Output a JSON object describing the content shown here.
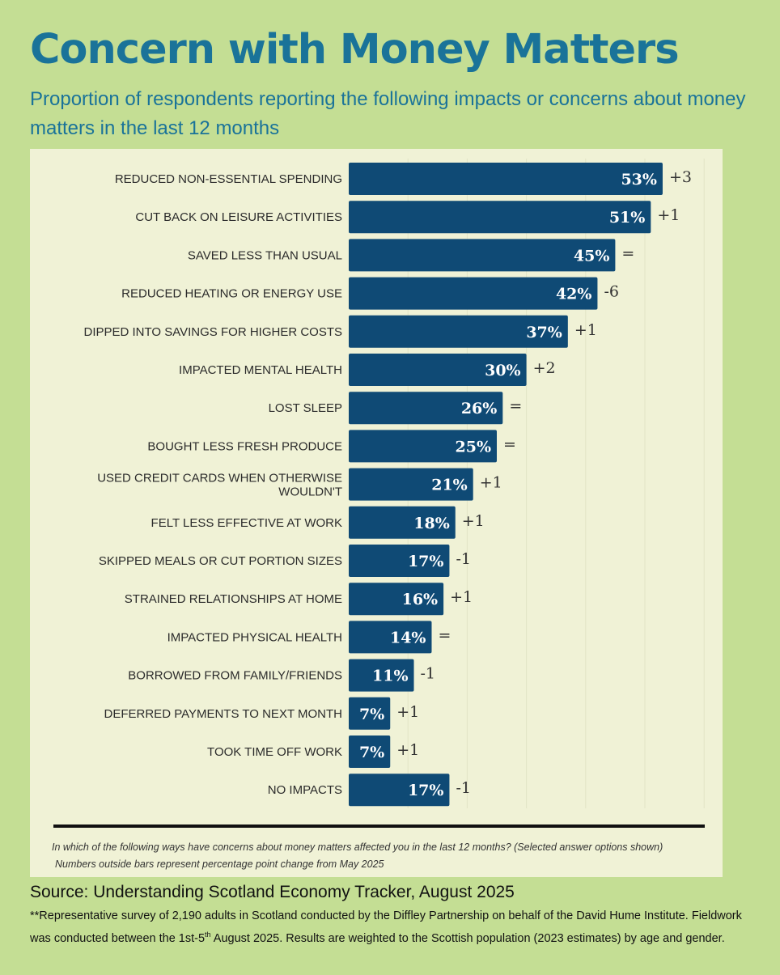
{
  "title": "Concern with Money Matters",
  "subtitle": "Proportion of respondents reporting the following impacts or concerns about money matters in the last 12 months",
  "colors": {
    "background": "#c4de94",
    "panel": "#f0f2d6",
    "bar": "#0f4a75",
    "heading": "#1a7399"
  },
  "chart_data": {
    "type": "bar",
    "orientation": "horizontal",
    "unit": "%",
    "xlim": [
      0,
      60
    ],
    "categories": [
      "REDUCED NON-ESSENTIAL SPENDING",
      "CUT BACK ON LEISURE ACTIVITIES",
      "SAVED LESS THAN USUAL",
      "REDUCED HEATING OR ENERGY USE",
      "DIPPED INTO SAVINGS FOR HIGHER COSTS",
      "IMPACTED MENTAL HEALTH",
      "LOST SLEEP",
      "BOUGHT LESS FRESH PRODUCE",
      "USED CREDIT CARDS WHEN OTHERWISE WOULDN'T",
      "FELT LESS EFFECTIVE AT WORK",
      "SKIPPED MEALS OR CUT PORTION SIZES",
      "STRAINED RELATIONSHIPS AT HOME",
      "IMPACTED PHYSICAL HEALTH",
      "BORROWED FROM FAMILY/FRIENDS",
      "DEFERRED PAYMENTS TO NEXT MONTH",
      "TOOK TIME OFF WORK",
      "NO IMPACTS"
    ],
    "values": [
      53,
      51,
      45,
      42,
      37,
      30,
      26,
      25,
      21,
      18,
      17,
      16,
      14,
      11,
      7,
      7,
      17
    ],
    "changes": [
      "+3",
      "+1",
      "=",
      "-6",
      "+1",
      "+2",
      "=",
      "=",
      "+1",
      "+1",
      "-1",
      "+1",
      "=",
      "-1",
      "+1",
      "+1",
      "-1"
    ],
    "change_label": "Numbers outside bars represent percentage point change from May 2025"
  },
  "notes": {
    "question": "In which of the following ways have concerns about money matters affected you in the last 12 months? (Selected answer options shown)",
    "change_note": "Numbers outside bars represent percentage point change from May 2025"
  },
  "source": "Source: Understanding Scotland Economy Tracker, August 2025",
  "footnote": {
    "part1": "**Representative survey of 2,190 adults in Scotland conducted by the Diffley Partnership on behalf of the David Hume Institute. Fieldwork was conducted between the 1st-5",
    "superscript": "th",
    "part2": " August 2025. Results are weighted to the Scottish population (2023 estimates) by age and gender."
  }
}
